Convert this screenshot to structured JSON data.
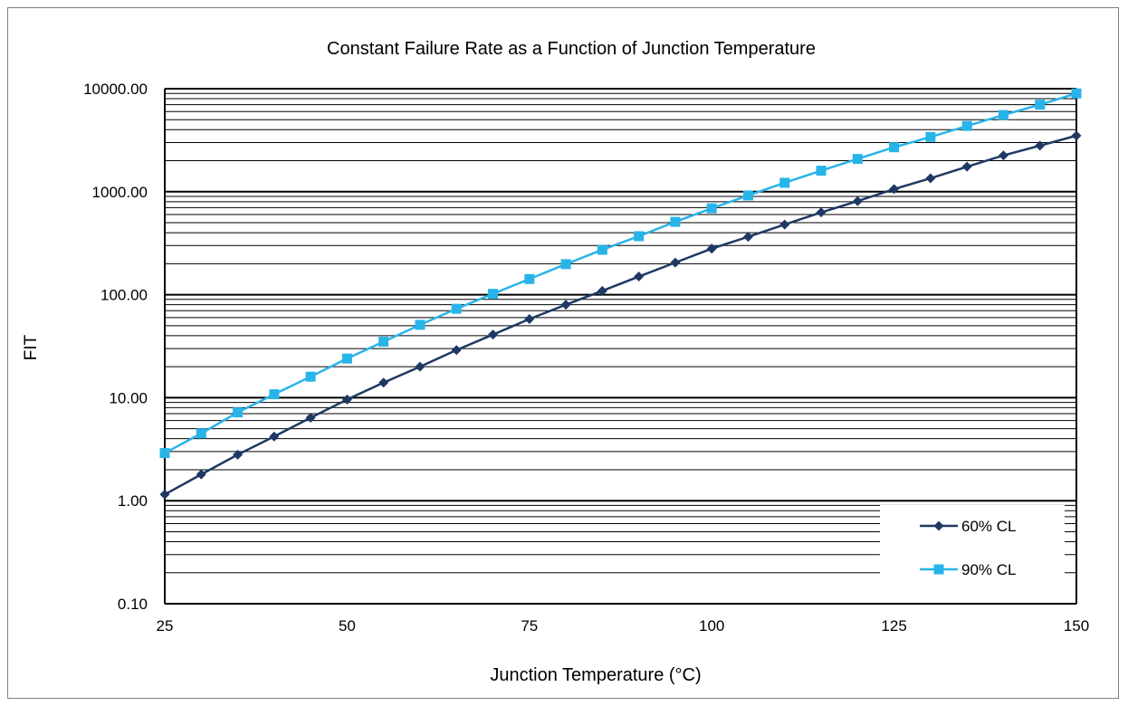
{
  "chart_data": {
    "type": "line",
    "title": "Constant Failure Rate as a Function of Junction Temperature",
    "xlabel": "Junction  Temperature (°C)",
    "ylabel": "FIT",
    "x_ticks": [
      "25",
      "50",
      "75",
      "100",
      "125",
      "150"
    ],
    "y_ticks": [
      "0.10",
      "1.00",
      "10.00",
      "100.00",
      "1000.00",
      "10000.00"
    ],
    "xlim": [
      25,
      150
    ],
    "ylim": [
      0.1,
      10000
    ],
    "y_scale": "log",
    "grid": "horizontal major and minor",
    "legend_position": "bottom-right",
    "x": [
      25,
      30,
      35,
      40,
      45,
      50,
      55,
      60,
      65,
      70,
      75,
      80,
      85,
      90,
      95,
      100,
      105,
      110,
      115,
      120,
      125,
      130,
      135,
      140,
      145,
      150
    ],
    "series": [
      {
        "name": "60% CL",
        "marker": "diamond",
        "color": "#1f3864",
        "values": [
          1.15,
          1.8,
          2.8,
          4.2,
          6.4,
          9.6,
          14,
          20,
          29,
          41,
          58,
          80,
          109,
          150,
          205,
          280,
          365,
          480,
          630,
          810,
          1060,
          1350,
          1750,
          2250,
          2800,
          3500
        ]
      },
      {
        "name": "90% CL",
        "marker": "square",
        "color": "#28b4e8",
        "values": [
          2.9,
          4.5,
          7.2,
          10.8,
          16,
          24,
          35,
          51,
          73,
          102,
          142,
          198,
          273,
          370,
          510,
          690,
          920,
          1220,
          1600,
          2080,
          2700,
          3400,
          4350,
          5550,
          7000,
          9000
        ]
      }
    ]
  }
}
